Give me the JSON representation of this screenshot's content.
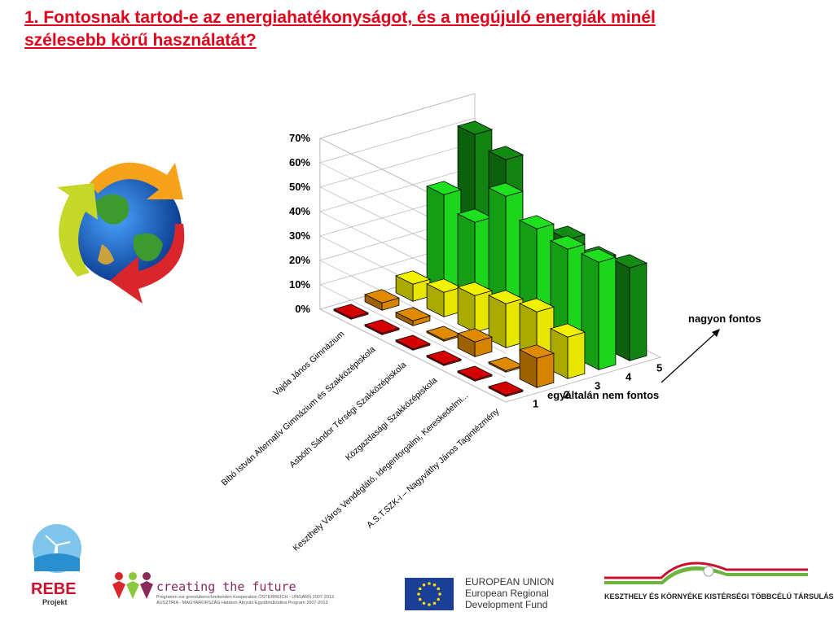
{
  "slide": {
    "title_line1": "1. Fontosnak tartod-e az energiahatékonyságot, és a megújuló energiák minél",
    "title_line2": "szélesebb körű használatát?"
  },
  "chart_data": {
    "type": "bar",
    "variant": "3d-grouped-bar",
    "categories": [
      "Vajda János Gimnázium",
      "Bibó István Alternatív Gimnázium és Szakközépiskola",
      "Asbóth Sándor Térségi Szakközépiskola",
      "Közgazdasági Szakközépiskola",
      "Keszthely Város Vendéglátó, Idegenforgalmi, Kereskedelmi...",
      "A.S.T.SZK-i – Nagyváthy János Tagintézmény"
    ],
    "series": [
      {
        "name": "1",
        "color": "#d40000",
        "values": [
          0,
          0,
          0,
          0,
          0,
          0
        ]
      },
      {
        "name": "2",
        "color": "#e08a00",
        "values": [
          3,
          2,
          0,
          6,
          0,
          12
        ]
      },
      {
        "name": "3",
        "color": "#f2f200",
        "values": [
          7,
          10,
          15,
          18,
          21,
          17
        ]
      },
      {
        "name": "4",
        "color": "#1ee01e",
        "values": [
          40,
          35,
          52,
          45,
          43,
          44
        ]
      },
      {
        "name": "5",
        "color": "#138a13",
        "values": [
          61,
          57,
          33,
          37,
          35,
          38
        ]
      }
    ],
    "yticks": [
      "0%",
      "10%",
      "20%",
      "30%",
      "40%",
      "50%",
      "60%",
      "70%"
    ],
    "ylim": [
      0,
      70
    ],
    "depth_axis_annotations": {
      "low": "egyáltalán nem fontos",
      "high": "nagyon fontos"
    },
    "grid": true
  },
  "footer": {
    "rebe_name": "REBE",
    "rebe_sub": "Projekt",
    "ctf_name": "creating the future",
    "ctf_line1": "Programm zur grenzüberschreitenden Kooperation ÖSTERREICH - UNGARN 2007-2013",
    "ctf_line2": "AUSZTRIA - MAGYARORSZÁG Határon Átnyúló Együttműködési Program 2007-2013",
    "eu_line1": "EUROPEAN UNION",
    "eu_line2": "European Regional",
    "eu_line3": "Development Fund",
    "kesz_name": "KESZTHELY ÉS KÖRNYÉKE KISTÉRSÉGI TÖBBCÉLÚ TÁRSULÁS"
  },
  "colors": {
    "title": "#e2001a",
    "eu_flag": "#1b3e97",
    "eu_star": "#ffdd00"
  },
  "icons": [
    "recycle-globe-icon",
    "rebe-windmill-icon",
    "creating-the-future-figures-icon",
    "eu-flag-icon",
    "kesztelyi-swoosh-icon"
  ]
}
